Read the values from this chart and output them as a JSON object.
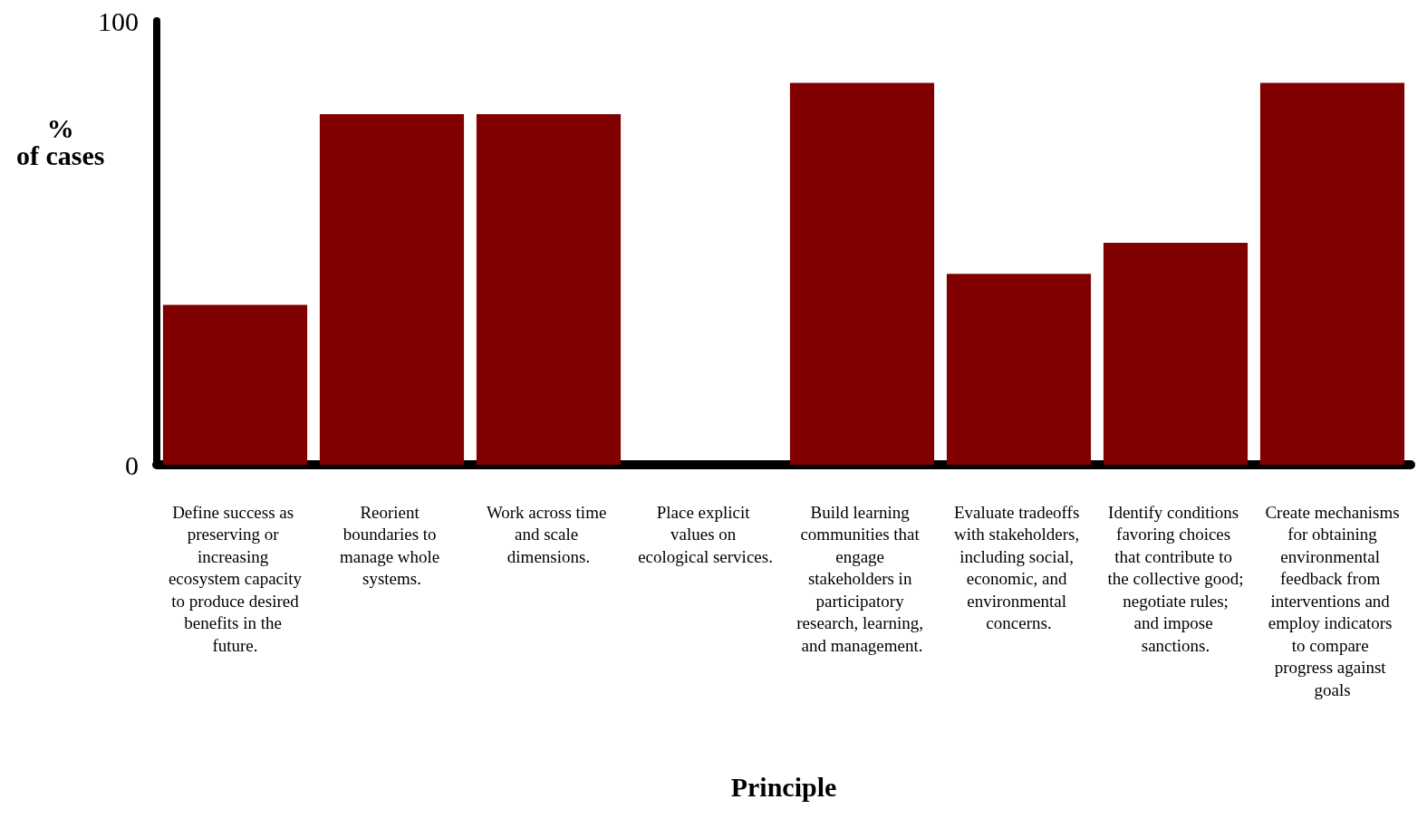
{
  "chart_data": {
    "type": "bar",
    "xlabel": "Principle",
    "ylabel": "%\nof cases",
    "categories": [
      "Define success as preserving or increasing ecosystem capacity to produce desired benefits in the future.",
      "Reorient boundaries to manage whole systems.",
      "Work across time and scale dimensions.",
      "Place explicit values on ecological services.",
      "Build learning communities that engage stakeholders in participatory research, learning, and management.",
      "Evaluate tradeoffs with stakeholders, including social, economic, and environmental concerns.",
      "Identify conditions favoring choices that contribute to the collective good; negotiate rules; and impose sanctions.",
      "Create mechanisms for obtaining environmental feedback from interventions and employ indicators to compare progress against goals"
    ],
    "values": [
      36,
      79,
      79,
      0,
      86,
      43,
      50,
      86
    ],
    "color": "#800000",
    "ylim": [
      0,
      100
    ],
    "yticks": [
      0,
      100
    ],
    "grid": false
  }
}
